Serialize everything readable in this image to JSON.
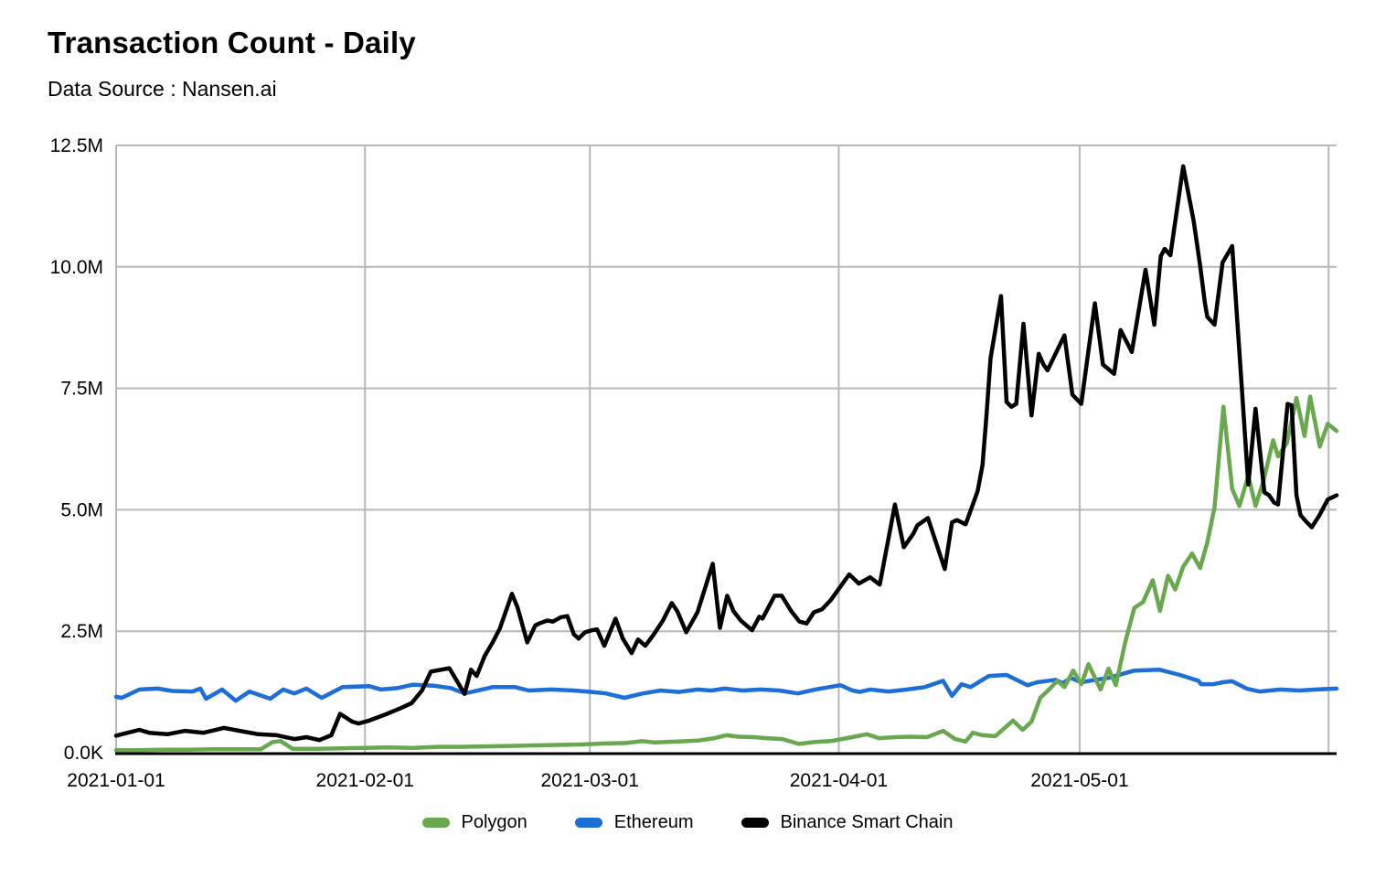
{
  "header": {
    "title": "Transaction Count - Daily",
    "subtitle": "Data Source : Nansen.ai"
  },
  "chart_data": {
    "type": "line",
    "title": "Transaction Count - Daily",
    "subtitle": "Data Source : Nansen.ai",
    "x_unit": "days_since_2021-01-01",
    "x_domain_days": [
      0,
      152
    ],
    "y_unit": "transactions_millions",
    "y_domain_millions": [
      0,
      12.5
    ],
    "grid": true,
    "grid_color": "#b7b7b7",
    "axis_color": "#000000",
    "tick_label_color": "#000000",
    "legend_position": "bottom",
    "y_ticks": [
      {
        "label": "0.0K",
        "value": 0
      },
      {
        "label": "2.5M",
        "value": 2.5
      },
      {
        "label": "5.0M",
        "value": 5
      },
      {
        "label": "7.5M",
        "value": 7.5
      },
      {
        "label": "10.0M",
        "value": 10
      },
      {
        "label": "12.5M",
        "value": 12.5
      }
    ],
    "x_ticks": [
      {
        "label": "2021-01-01",
        "day": 0
      },
      {
        "label": "2021-02-01",
        "day": 31
      },
      {
        "label": "2021-03-01",
        "day": 59
      },
      {
        "label": "2021-04-01",
        "day": 90
      },
      {
        "label": "2021-05-01",
        "day": 120
      },
      {
        "label": "",
        "day": 151
      }
    ],
    "draw_order": [
      1,
      0,
      2
    ],
    "series": [
      {
        "name": "Polygon",
        "color": "#6aa84f",
        "points": [
          [
            0,
            0.05
          ],
          [
            3,
            0.05
          ],
          [
            6,
            0.06
          ],
          [
            9,
            0.06
          ],
          [
            12,
            0.07
          ],
          [
            15,
            0.07
          ],
          [
            18,
            0.07
          ],
          [
            19.5,
            0.22
          ],
          [
            20.5,
            0.24
          ],
          [
            22,
            0.08
          ],
          [
            25,
            0.08
          ],
          [
            28,
            0.09
          ],
          [
            31,
            0.1
          ],
          [
            34,
            0.11
          ],
          [
            37,
            0.1
          ],
          [
            40,
            0.12
          ],
          [
            43,
            0.12
          ],
          [
            46,
            0.13
          ],
          [
            49,
            0.14
          ],
          [
            52,
            0.15
          ],
          [
            55,
            0.16
          ],
          [
            58,
            0.17
          ],
          [
            61,
            0.19
          ],
          [
            63.5,
            0.2
          ],
          [
            65.5,
            0.24
          ],
          [
            67,
            0.21
          ],
          [
            70,
            0.23
          ],
          [
            72.5,
            0.25
          ],
          [
            74.5,
            0.3
          ],
          [
            76,
            0.36
          ],
          [
            77.5,
            0.33
          ],
          [
            79.5,
            0.32
          ],
          [
            81,
            0.3
          ],
          [
            83,
            0.28
          ],
          [
            85,
            0.18
          ],
          [
            87,
            0.22
          ],
          [
            89,
            0.24
          ],
          [
            91,
            0.3
          ],
          [
            93.5,
            0.38
          ],
          [
            95,
            0.3
          ],
          [
            97,
            0.32
          ],
          [
            99,
            0.33
          ],
          [
            101,
            0.32
          ],
          [
            103,
            0.45
          ],
          [
            104.5,
            0.28
          ],
          [
            105.8,
            0.23
          ],
          [
            106.7,
            0.41
          ],
          [
            107.9,
            0.36
          ],
          [
            109.5,
            0.34
          ],
          [
            111.7,
            0.66
          ],
          [
            112.9,
            0.47
          ],
          [
            114,
            0.64
          ],
          [
            115.1,
            1.13
          ],
          [
            116.3,
            1.32
          ],
          [
            117.2,
            1.48
          ],
          [
            118.1,
            1.35
          ],
          [
            119.2,
            1.69
          ],
          [
            120.2,
            1.41
          ],
          [
            121.1,
            1.82
          ],
          [
            122.6,
            1.3
          ],
          [
            123.6,
            1.73
          ],
          [
            124.5,
            1.39
          ],
          [
            125.7,
            2.29
          ],
          [
            126.8,
            2.98
          ],
          [
            127.9,
            3.1
          ],
          [
            129.1,
            3.55
          ],
          [
            130,
            2.92
          ],
          [
            131,
            3.64
          ],
          [
            131.9,
            3.36
          ],
          [
            132.9,
            3.83
          ],
          [
            134,
            4.1
          ],
          [
            135,
            3.8
          ],
          [
            135.9,
            4.33
          ],
          [
            136.8,
            5.05
          ],
          [
            137.9,
            7.12
          ],
          [
            139,
            5.43
          ],
          [
            139.9,
            5.08
          ],
          [
            141,
            5.7
          ],
          [
            141.9,
            5.08
          ],
          [
            142.9,
            5.6
          ],
          [
            144.1,
            6.43
          ],
          [
            144.7,
            6.1
          ],
          [
            145.8,
            6.37
          ],
          [
            147,
            7.3
          ],
          [
            148,
            6.52
          ],
          [
            148.7,
            7.33
          ],
          [
            149.9,
            6.3
          ],
          [
            150.9,
            6.77
          ],
          [
            152,
            6.62
          ]
        ]
      },
      {
        "name": "Ethereum",
        "color": "#1e6ed8",
        "points": [
          [
            0,
            1.15
          ],
          [
            0.7,
            1.13
          ],
          [
            2.9,
            1.3
          ],
          [
            5.2,
            1.32
          ],
          [
            7,
            1.27
          ],
          [
            9.5,
            1.26
          ],
          [
            10.5,
            1.32
          ],
          [
            11.2,
            1.11
          ],
          [
            13.2,
            1.3
          ],
          [
            14.9,
            1.07
          ],
          [
            16.6,
            1.26
          ],
          [
            19.2,
            1.11
          ],
          [
            20.8,
            1.3
          ],
          [
            22.2,
            1.22
          ],
          [
            23.7,
            1.32
          ],
          [
            25.6,
            1.13
          ],
          [
            28.2,
            1.35
          ],
          [
            31.5,
            1.37
          ],
          [
            33,
            1.3
          ],
          [
            35,
            1.33
          ],
          [
            37,
            1.4
          ],
          [
            39.5,
            1.38
          ],
          [
            41.7,
            1.33
          ],
          [
            43.4,
            1.22
          ],
          [
            46.9,
            1.35
          ],
          [
            49.7,
            1.35
          ],
          [
            51.4,
            1.28
          ],
          [
            54.2,
            1.3
          ],
          [
            57,
            1.28
          ],
          [
            59.3,
            1.25
          ],
          [
            61,
            1.22
          ],
          [
            63.3,
            1.13
          ],
          [
            65.6,
            1.22
          ],
          [
            67.8,
            1.28
          ],
          [
            70.1,
            1.25
          ],
          [
            72.4,
            1.3
          ],
          [
            74.1,
            1.28
          ],
          [
            75.8,
            1.32
          ],
          [
            78,
            1.28
          ],
          [
            80.3,
            1.3
          ],
          [
            82.6,
            1.28
          ],
          [
            84.9,
            1.22
          ],
          [
            87.1,
            1.3
          ],
          [
            88.8,
            1.35
          ],
          [
            90.2,
            1.39
          ],
          [
            91.7,
            1.28
          ],
          [
            92.6,
            1.25
          ],
          [
            93.9,
            1.3
          ],
          [
            96.2,
            1.26
          ],
          [
            98.5,
            1.3
          ],
          [
            100.7,
            1.35
          ],
          [
            103,
            1.48
          ],
          [
            104.1,
            1.17
          ],
          [
            105.3,
            1.41
          ],
          [
            106.4,
            1.35
          ],
          [
            108.7,
            1.58
          ],
          [
            110.9,
            1.6
          ],
          [
            113.5,
            1.39
          ],
          [
            114.7,
            1.45
          ],
          [
            117,
            1.5
          ],
          [
            117.9,
            1.43
          ],
          [
            118.9,
            1.54
          ],
          [
            120.2,
            1.45
          ],
          [
            122,
            1.5
          ],
          [
            123.6,
            1.54
          ],
          [
            126.8,
            1.69
          ],
          [
            129.9,
            1.71
          ],
          [
            132.5,
            1.6
          ],
          [
            134.8,
            1.48
          ],
          [
            135.1,
            1.41
          ],
          [
            136.7,
            1.41
          ],
          [
            137.8,
            1.45
          ],
          [
            139,
            1.47
          ],
          [
            140.8,
            1.32
          ],
          [
            142.4,
            1.26
          ],
          [
            145,
            1.3
          ],
          [
            147.3,
            1.28
          ],
          [
            149.5,
            1.3
          ],
          [
            152,
            1.32
          ]
        ]
      },
      {
        "name": "Binance Smart Chain",
        "color": "#000000",
        "points": [
          [
            0,
            0.35
          ],
          [
            0.7,
            0.38
          ],
          [
            2.9,
            0.47
          ],
          [
            4.1,
            0.41
          ],
          [
            6.4,
            0.38
          ],
          [
            8.6,
            0.45
          ],
          [
            10.9,
            0.41
          ],
          [
            13.4,
            0.51
          ],
          [
            15.4,
            0.45
          ],
          [
            17.7,
            0.38
          ],
          [
            20,
            0.36
          ],
          [
            22.2,
            0.28
          ],
          [
            23.7,
            0.32
          ],
          [
            25.3,
            0.26
          ],
          [
            26.8,
            0.36
          ],
          [
            27.9,
            0.8
          ],
          [
            29.4,
            0.64
          ],
          [
            30.2,
            0.6
          ],
          [
            31.5,
            0.66
          ],
          [
            33.6,
            0.79
          ],
          [
            35.5,
            0.92
          ],
          [
            36.8,
            1.02
          ],
          [
            38.1,
            1.28
          ],
          [
            39.2,
            1.67
          ],
          [
            41.5,
            1.74
          ],
          [
            43.4,
            1.21
          ],
          [
            44.2,
            1.71
          ],
          [
            44.9,
            1.58
          ],
          [
            45.9,
            1.99
          ],
          [
            46.9,
            2.27
          ],
          [
            47.8,
            2.56
          ],
          [
            49.3,
            3.27
          ],
          [
            50,
            2.99
          ],
          [
            51.2,
            2.27
          ],
          [
            52.2,
            2.62
          ],
          [
            52.7,
            2.66
          ],
          [
            53.7,
            2.72
          ],
          [
            54.4,
            2.7
          ],
          [
            55.4,
            2.79
          ],
          [
            56.2,
            2.81
          ],
          [
            57,
            2.44
          ],
          [
            57.6,
            2.35
          ],
          [
            58.4,
            2.48
          ],
          [
            59.3,
            2.52
          ],
          [
            59.9,
            2.54
          ],
          [
            60.8,
            2.2
          ],
          [
            62.2,
            2.76
          ],
          [
            63.1,
            2.35
          ],
          [
            64.2,
            2.05
          ],
          [
            65,
            2.33
          ],
          [
            65.9,
            2.2
          ],
          [
            66.9,
            2.42
          ],
          [
            68.1,
            2.72
          ],
          [
            69.2,
            3.08
          ],
          [
            69.9,
            2.91
          ],
          [
            71,
            2.48
          ],
          [
            72.4,
            2.89
          ],
          [
            74.3,
            3.89
          ],
          [
            75.2,
            2.57
          ],
          [
            76.1,
            3.23
          ],
          [
            76.9,
            2.91
          ],
          [
            77.8,
            2.72
          ],
          [
            79.2,
            2.52
          ],
          [
            80.1,
            2.8
          ],
          [
            80.5,
            2.76
          ],
          [
            82,
            3.23
          ],
          [
            82.9,
            3.23
          ],
          [
            84.1,
            2.91
          ],
          [
            85.1,
            2.7
          ],
          [
            86,
            2.66
          ],
          [
            86.9,
            2.89
          ],
          [
            87.9,
            2.95
          ],
          [
            89,
            3.14
          ],
          [
            91.3,
            3.67
          ],
          [
            92.5,
            3.48
          ],
          [
            93.9,
            3.61
          ],
          [
            95.1,
            3.46
          ],
          [
            97,
            5.11
          ],
          [
            98.1,
            4.23
          ],
          [
            99.3,
            4.51
          ],
          [
            99.8,
            4.68
          ],
          [
            101.1,
            4.83
          ],
          [
            103.2,
            3.78
          ],
          [
            104.1,
            4.74
          ],
          [
            104.7,
            4.79
          ],
          [
            105.8,
            4.7
          ],
          [
            106.7,
            5.11
          ],
          [
            107.3,
            5.39
          ],
          [
            107.9,
            5.92
          ],
          [
            108.4,
            6.96
          ],
          [
            108.9,
            8.12
          ],
          [
            110.2,
            9.4
          ],
          [
            110.9,
            7.22
          ],
          [
            111.5,
            7.12
          ],
          [
            112.1,
            7.18
          ],
          [
            113,
            8.83
          ],
          [
            114,
            6.94
          ],
          [
            114.9,
            8.21
          ],
          [
            115.5,
            7.99
          ],
          [
            116,
            7.87
          ],
          [
            118.1,
            8.59
          ],
          [
            119.1,
            7.37
          ],
          [
            120.2,
            7.18
          ],
          [
            121.9,
            9.25
          ],
          [
            122.9,
            7.99
          ],
          [
            124.3,
            7.8
          ],
          [
            125.1,
            8.7
          ],
          [
            126.5,
            8.25
          ],
          [
            128.2,
            9.94
          ],
          [
            129.3,
            8.81
          ],
          [
            130.1,
            10.22
          ],
          [
            130.6,
            10.37
          ],
          [
            131.3,
            10.24
          ],
          [
            132.9,
            12.07
          ],
          [
            134.2,
            10.94
          ],
          [
            135,
            10.03
          ],
          [
            135.6,
            9.25
          ],
          [
            135.9,
            8.97
          ],
          [
            136.8,
            8.81
          ],
          [
            137.8,
            10.09
          ],
          [
            139,
            10.43
          ],
          [
            140.1,
            7.74
          ],
          [
            141,
            5.52
          ],
          [
            141.9,
            7.08
          ],
          [
            143,
            5.36
          ],
          [
            143.6,
            5.3
          ],
          [
            144.2,
            5.15
          ],
          [
            144.7,
            5.11
          ],
          [
            145.9,
            7.18
          ],
          [
            146.4,
            7.15
          ],
          [
            147,
            5.3
          ],
          [
            147.5,
            4.89
          ],
          [
            148.3,
            4.74
          ],
          [
            148.9,
            4.64
          ],
          [
            149.8,
            4.87
          ],
          [
            150.9,
            5.21
          ],
          [
            152,
            5.3
          ]
        ]
      }
    ]
  }
}
